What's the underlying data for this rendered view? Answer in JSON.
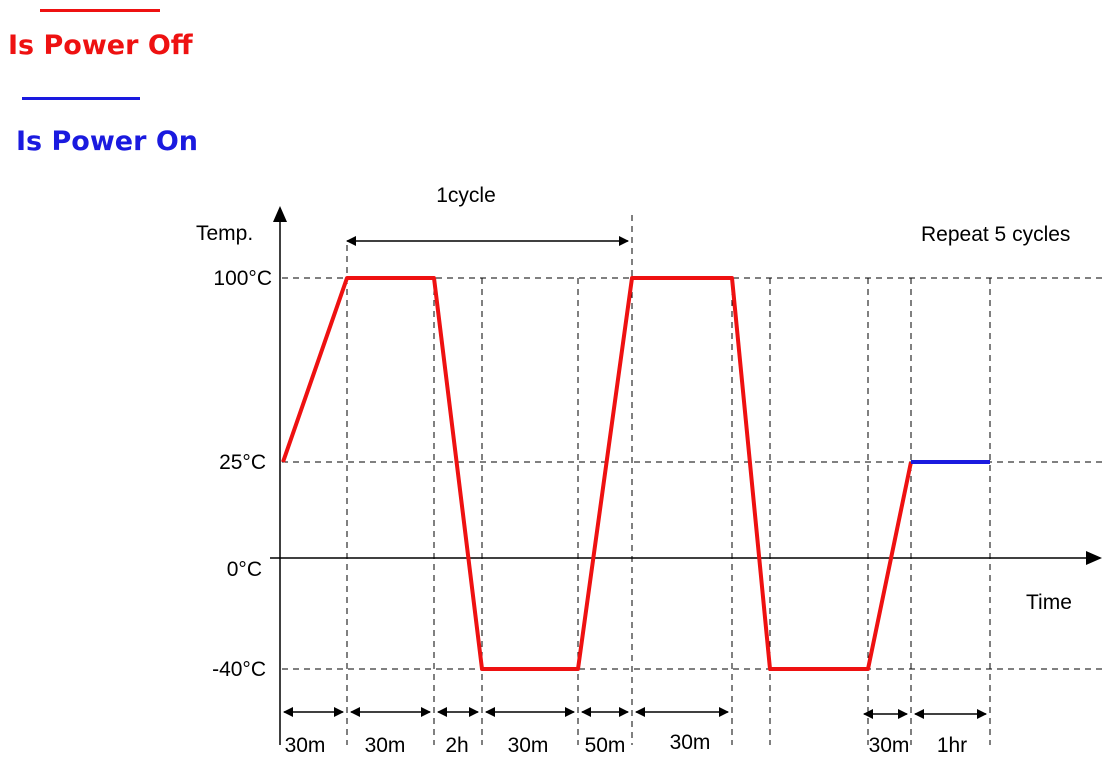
{
  "legend": {
    "power_off": {
      "label": "Is Power Off",
      "color": "#ee1111"
    },
    "power_on": {
      "label": "Is Power On",
      "color": "#1a1adf"
    }
  },
  "diagram": {
    "cycle_label": "1cycle",
    "repeat_label": "Repeat 5 cycles",
    "y_axis_label": "Temp.",
    "x_axis_label": "Time",
    "temperature_levels": [
      "100°C",
      "25°C",
      "0°C",
      "-40°C"
    ],
    "segment_durations": [
      "30m",
      "30m",
      "2h",
      "30m",
      "50m",
      "30m",
      "30m",
      "1hr"
    ],
    "profile_temperatures_c": [
      25,
      100,
      100,
      -40,
      -40,
      100,
      100,
      -40,
      -40,
      25,
      25
    ]
  }
}
